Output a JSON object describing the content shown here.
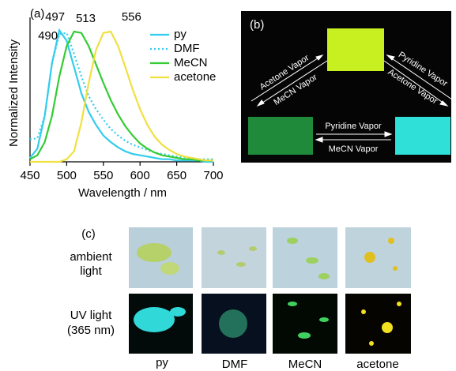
{
  "chart_data": {
    "type": "line",
    "label": "(a)",
    "xlabel": "Wavelength / nm",
    "ylabel": "Normalized  Intensity",
    "x": [
      450,
      460,
      470,
      480,
      490,
      500,
      510,
      520,
      530,
      540,
      550,
      560,
      570,
      580,
      590,
      600,
      610,
      620,
      630,
      640,
      650,
      660,
      670,
      680,
      690,
      700
    ],
    "series": [
      {
        "name": "py",
        "color": "#33ccee",
        "style": "solid",
        "values": [
          0.03,
          0.1,
          0.35,
          0.75,
          1.0,
          0.92,
          0.72,
          0.52,
          0.38,
          0.28,
          0.2,
          0.15,
          0.11,
          0.08,
          0.06,
          0.05,
          0.04,
          0.03,
          0.02,
          0.02,
          0.01,
          0.01,
          0.01,
          0.01,
          0,
          0
        ]
      },
      {
        "name": "DMF",
        "color": "#33ccee",
        "style": "dotted",
        "values": [
          0.17,
          0.18,
          0.35,
          0.75,
          0.97,
          0.98,
          0.82,
          0.65,
          0.5,
          0.4,
          0.32,
          0.25,
          0.2,
          0.16,
          0.13,
          0.11,
          0.09,
          0.07,
          0.06,
          0.05,
          0.04,
          0.03,
          0.03,
          0.02,
          0.02,
          0.02
        ]
      },
      {
        "name": "MeCN",
        "color": "#33cc33",
        "style": "solid",
        "values": [
          0.02,
          0.05,
          0.15,
          0.35,
          0.65,
          0.88,
          0.99,
          0.98,
          0.88,
          0.74,
          0.6,
          0.47,
          0.36,
          0.27,
          0.2,
          0.14,
          0.1,
          0.07,
          0.05,
          0.04,
          0.03,
          0.02,
          0.02,
          0.01,
          0.01,
          0.01
        ]
      },
      {
        "name": "acetone",
        "color": "#f0e040",
        "style": "solid",
        "values": [
          0,
          0,
          0,
          0,
          0,
          0.02,
          0.08,
          0.3,
          0.6,
          0.85,
          0.98,
          0.99,
          0.88,
          0.72,
          0.55,
          0.4,
          0.28,
          0.19,
          0.13,
          0.09,
          0.06,
          0.04,
          0.03,
          0.02,
          0.01,
          0.01
        ]
      }
    ],
    "annotations": [
      {
        "x": 490,
        "color": "#33ccee"
      },
      {
        "x": 497,
        "color": "#33ccee"
      },
      {
        "x": 513,
        "color": "#33cc33"
      },
      {
        "x": 556,
        "color": "#f08040"
      }
    ],
    "xlim": [
      450,
      700
    ],
    "xticks": [
      450,
      500,
      550,
      600,
      650,
      700
    ],
    "ylim": [
      0,
      1.05
    ],
    "legend": "upper right"
  },
  "panel_b": {
    "label": "(b)",
    "left_arrow": [
      "Acetone Vapor",
      "MeCN Vapor"
    ],
    "right_arrow": [
      "Pyridine Vapor",
      "Acetone Vapor"
    ],
    "bottom_arrow": [
      "Pyridine Vapor",
      "MeCN Vapor"
    ]
  },
  "panel_c": {
    "label": "(c)",
    "rows": [
      [
        "ambient",
        "light"
      ],
      [
        "UV light",
        "(365 nm)"
      ]
    ],
    "columns": [
      "py",
      "DMF",
      "MeCN",
      "acetone"
    ]
  }
}
